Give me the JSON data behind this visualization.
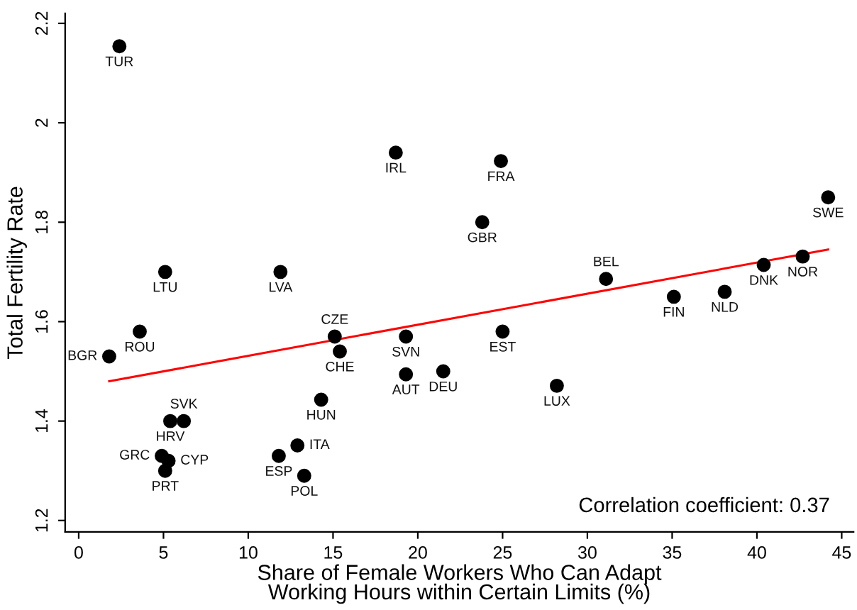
{
  "chart_data": {
    "type": "scatter",
    "xlabel": "Share of Female Workers Who Can Adapt\nWorking Hours within Certain Limits (%)",
    "ylabel": "Total Fertility Rate",
    "xlim": [
      -0.8,
      45.7
    ],
    "ylim": [
      1.177,
      2.22
    ],
    "xticks": [
      0,
      5,
      10,
      15,
      20,
      25,
      30,
      35,
      40,
      45
    ],
    "yticks": [
      {
        "value": 1.2,
        "label": "1.2"
      },
      {
        "value": 1.4,
        "label": "1.4"
      },
      {
        "value": 1.6,
        "label": "1.6"
      },
      {
        "value": 1.8,
        "label": "1.8"
      },
      {
        "value": 2.0,
        "label": "2"
      },
      {
        "value": 2.2,
        "label": "2.2"
      }
    ],
    "grid": false,
    "legend": false,
    "series": [
      {
        "type": "scatter",
        "marker": "circle",
        "color": "#000000",
        "x": [
          2.4,
          18.7,
          24.9,
          23.8,
          44.2,
          5.1,
          11.9,
          31.1,
          40.4,
          42.7,
          35.1,
          38.1,
          3.6,
          1.8,
          15.1,
          15.4,
          19.3,
          25.0,
          19.3,
          21.5,
          28.2,
          14.3,
          5.4,
          6.2,
          12.9,
          11.8,
          13.3,
          4.9,
          5.3,
          5.1
        ],
        "values": [
          2.154,
          1.94,
          1.923,
          1.8,
          1.85,
          1.7,
          1.7,
          1.686,
          1.714,
          1.731,
          1.65,
          1.66,
          1.58,
          1.53,
          1.57,
          1.54,
          1.57,
          1.58,
          1.494,
          1.5,
          1.471,
          1.443,
          1.4,
          1.4,
          1.351,
          1.33,
          1.29,
          1.33,
          1.32,
          1.3
        ],
        "value_labels": [
          "TUR",
          "IRL",
          "FRA",
          "GBR",
          "SWE",
          "LTU",
          "LVA",
          "BEL",
          "DNK",
          "NOR",
          "FIN",
          "NLD",
          "ROU",
          "BGR",
          "CZE",
          "CHE",
          "SVN",
          "EST",
          "AUT",
          "DEU",
          "LUX",
          "HUN",
          "HRV",
          "SVK",
          "ITA",
          "ESP",
          "POL",
          "GRC",
          "CYP",
          "PRT"
        ]
      },
      {
        "type": "line",
        "marker": "none",
        "color": "#ff0000",
        "x": [
          1.8,
          44.2
        ],
        "values": [
          1.48,
          1.745
        ]
      }
    ],
    "annotations": [
      "Correlation coefficient: 0.37"
    ]
  }
}
